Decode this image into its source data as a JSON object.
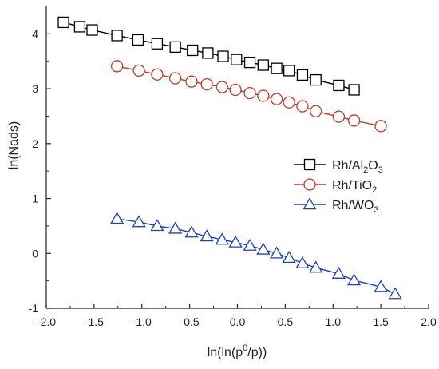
{
  "chart_data": {
    "type": "scatter",
    "title": "",
    "xlabel": {
      "pre": "ln(ln(p",
      "sup": "0",
      "post": "/p))"
    },
    "ylabel": "ln(Nads)",
    "xlim": [
      -2.0,
      2.0
    ],
    "ylim": [
      -1.0,
      4.5
    ],
    "xticks": [
      -2.0,
      -1.5,
      -1.0,
      -0.5,
      0.0,
      0.5,
      1.0,
      1.5,
      2.0
    ],
    "yticks": [
      -1,
      0,
      1,
      2,
      3,
      4
    ],
    "xtick_labels": [
      "-2.0",
      "-1.5",
      "-1.0",
      "-0.5",
      "0.0",
      "0.5",
      "1.0",
      "1.5",
      "2.0"
    ],
    "ytick_labels": [
      "-1",
      "0",
      "1",
      "2",
      "3",
      "4"
    ],
    "grid": false,
    "legend_position": "right",
    "series": [
      {
        "name": "Rh/Al2O3",
        "label_parts": [
          "Rh/Al",
          "2",
          "O",
          "3",
          ""
        ],
        "marker": "square",
        "color": "#000000",
        "x": [
          -1.82,
          -1.65,
          -1.52,
          -1.26,
          -1.04,
          -0.84,
          -0.65,
          -0.47,
          -0.31,
          -0.15,
          -0.01,
          0.13,
          0.27,
          0.41,
          0.54,
          0.68,
          0.82,
          1.06,
          1.22
        ],
        "y": [
          4.21,
          4.13,
          4.07,
          3.97,
          3.89,
          3.82,
          3.76,
          3.7,
          3.65,
          3.59,
          3.53,
          3.48,
          3.43,
          3.37,
          3.33,
          3.25,
          3.16,
          3.06,
          2.98
        ]
      },
      {
        "name": "Rh/TiO2",
        "label_parts": [
          "Rh/TiO",
          "2",
          "",
          "",
          ""
        ],
        "marker": "circle",
        "color": "#c0392b",
        "x": [
          -1.26,
          -1.03,
          -0.84,
          -0.65,
          -0.48,
          -0.32,
          -0.16,
          -0.02,
          0.13,
          0.27,
          0.41,
          0.54,
          0.68,
          0.82,
          1.06,
          1.22,
          1.5
        ],
        "y": [
          3.41,
          3.33,
          3.26,
          3.19,
          3.13,
          3.08,
          3.03,
          2.98,
          2.92,
          2.87,
          2.81,
          2.75,
          2.68,
          2.59,
          2.49,
          2.42,
          2.32
        ]
      },
      {
        "name": "Rh/WO3",
        "label_parts": [
          "Rh/WO",
          "3",
          "",
          "",
          ""
        ],
        "marker": "triangle",
        "color": "#1f3fbf",
        "x": [
          -1.26,
          -1.03,
          -0.84,
          -0.65,
          -0.48,
          -0.32,
          -0.16,
          -0.02,
          0.13,
          0.27,
          0.41,
          0.54,
          0.68,
          0.82,
          1.06,
          1.22,
          1.5,
          1.65
        ],
        "y": [
          0.63,
          0.57,
          0.5,
          0.45,
          0.38,
          0.31,
          0.25,
          0.2,
          0.14,
          0.07,
          0.0,
          -0.08,
          -0.18,
          -0.26,
          -0.37,
          -0.49,
          -0.61,
          -0.74
        ]
      }
    ]
  }
}
